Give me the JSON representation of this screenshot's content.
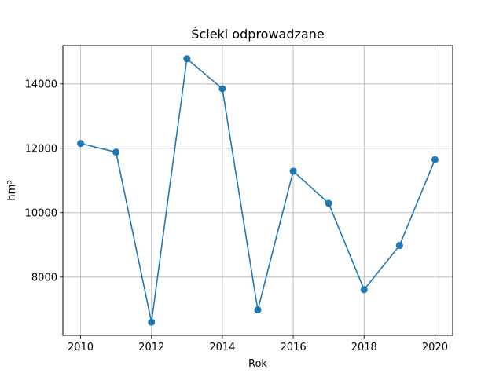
{
  "chart_data": {
    "type": "line",
    "title": "Ścieki odprowadzane",
    "xlabel": "Rok",
    "ylabel": "hm³",
    "x": [
      2010,
      2011,
      2012,
      2013,
      2014,
      2015,
      2016,
      2017,
      2018,
      2019,
      2020
    ],
    "series": [
      {
        "values": [
          12150,
          11880,
          6600,
          14780,
          13850,
          6980,
          11290,
          10290,
          7610,
          8980,
          11650
        ],
        "color": "#1f77b4",
        "marker": "circle"
      }
    ],
    "xlim": [
      2009.5,
      2020.5
    ],
    "ylim": [
      6190,
      15190
    ],
    "xticks": [
      "2010",
      "2012",
      "2014",
      "2016",
      "2018",
      "2020"
    ],
    "yticks": [
      "8000",
      "10000",
      "12000",
      "14000"
    ],
    "grid": true
  }
}
